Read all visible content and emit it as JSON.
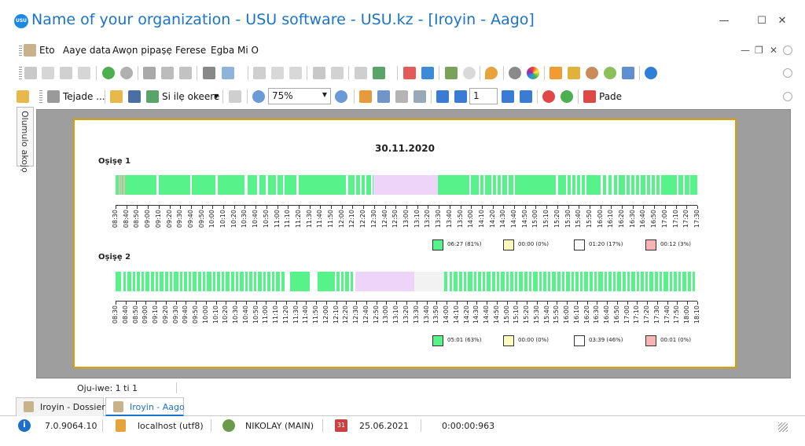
{
  "window": {
    "title": "Name of your organization - USU software - USU.kz - [Iroyin - Aago]",
    "logo_text": "USU",
    "minimize": "—",
    "maximize": "☐",
    "close": "✕"
  },
  "menu": {
    "items": [
      "Eto",
      "Aaye data",
      "Awọn pipaṣẹ",
      "Ferese",
      "Egba Mi O"
    ],
    "mdi_min": "—",
    "mdi_restore": "❐",
    "mdi_close": "✕"
  },
  "toolbar2": {
    "print_label": "Tejade ...",
    "export_label": "Si ilẹ okeere",
    "zoom_value": "75%",
    "page_value": "1",
    "close_label": "Pade"
  },
  "side_panel": {
    "label": "Olumulo akojọ"
  },
  "report": {
    "date": "30.11.2020",
    "lanes": [
      {
        "label": "Oṣiṣẹ 1",
        "ticks": [
          "08:30",
          "08:40",
          "08:50",
          "09:00",
          "09:10",
          "09:20",
          "09:30",
          "09:40",
          "09:50",
          "10:00",
          "10:10",
          "10:20",
          "10:30",
          "10:40",
          "10:50",
          "11:00",
          "11:10",
          "11:20",
          "11:30",
          "11:40",
          "11:50",
          "12:00",
          "12:10",
          "12:20",
          "12:30",
          "12:40",
          "12:50",
          "13:00",
          "13:10",
          "13:20",
          "13:30",
          "13:40",
          "13:50",
          "14:00",
          "14:10",
          "14:20",
          "14:30",
          "14:40",
          "14:50",
          "15:00",
          "15:10",
          "15:20",
          "15:30",
          "15:40",
          "15:50",
          "16:00",
          "16:10",
          "16:20",
          "16:30",
          "16:40",
          "16:50",
          "17:00",
          "17:10",
          "17:20",
          "17:30"
        ],
        "legend": [
          "06:27 (81%)",
          "00:00 (0%)",
          "01:20 (17%)",
          "00:12 (3%)"
        ]
      },
      {
        "label": "Oṣiṣẹ 2",
        "ticks": [
          "08:30",
          "08:40",
          "08:50",
          "09:00",
          "09:10",
          "09:20",
          "09:30",
          "09:40",
          "09:50",
          "10:00",
          "10:10",
          "10:20",
          "10:30",
          "10:40",
          "10:50",
          "11:00",
          "11:10",
          "11:20",
          "11:30",
          "11:40",
          "11:50",
          "12:00",
          "12:10",
          "12:20",
          "12:30",
          "12:40",
          "12:50",
          "13:00",
          "13:10",
          "13:20",
          "13:30",
          "13:40",
          "13:50",
          "14:00",
          "14:10",
          "14:20",
          "14:30",
          "14:40",
          "14:50",
          "15:00",
          "15:10",
          "15:20",
          "15:30",
          "15:40",
          "15:50",
          "16:00",
          "16:10",
          "16:20",
          "16:30",
          "16:40",
          "16:50",
          "17:00",
          "17:10",
          "17:20",
          "17:30",
          "17:40",
          "17:50",
          "18:00",
          "18:10"
        ],
        "legend": [
          "05:01 (63%)",
          "00:00 (0%)",
          "03:39 (46%)",
          "00:01 (0%)"
        ]
      }
    ],
    "legend_colors": [
      "#57f28a",
      "#fffbc0",
      "#ffffff",
      "#f7b4b4"
    ]
  },
  "page_status": "Oju-iwe: 1 ti 1",
  "tabs": [
    {
      "label": "Iroyin - Dossier"
    },
    {
      "label": "Iroyin - Aago"
    }
  ],
  "status": {
    "version": "7.0.9064.10",
    "db": "localhost (utf8)",
    "user": "NIKOLAY (MAIN)",
    "date": "25.06.2021",
    "timer": "0:00:00:963"
  },
  "colors": {
    "accent": "#1a73c8",
    "active": "#57f28a",
    "break": "#efd4f9",
    "idle": "#f2f2f2",
    "warn": "#f7b4b4",
    "frame": "#d9a000"
  }
}
